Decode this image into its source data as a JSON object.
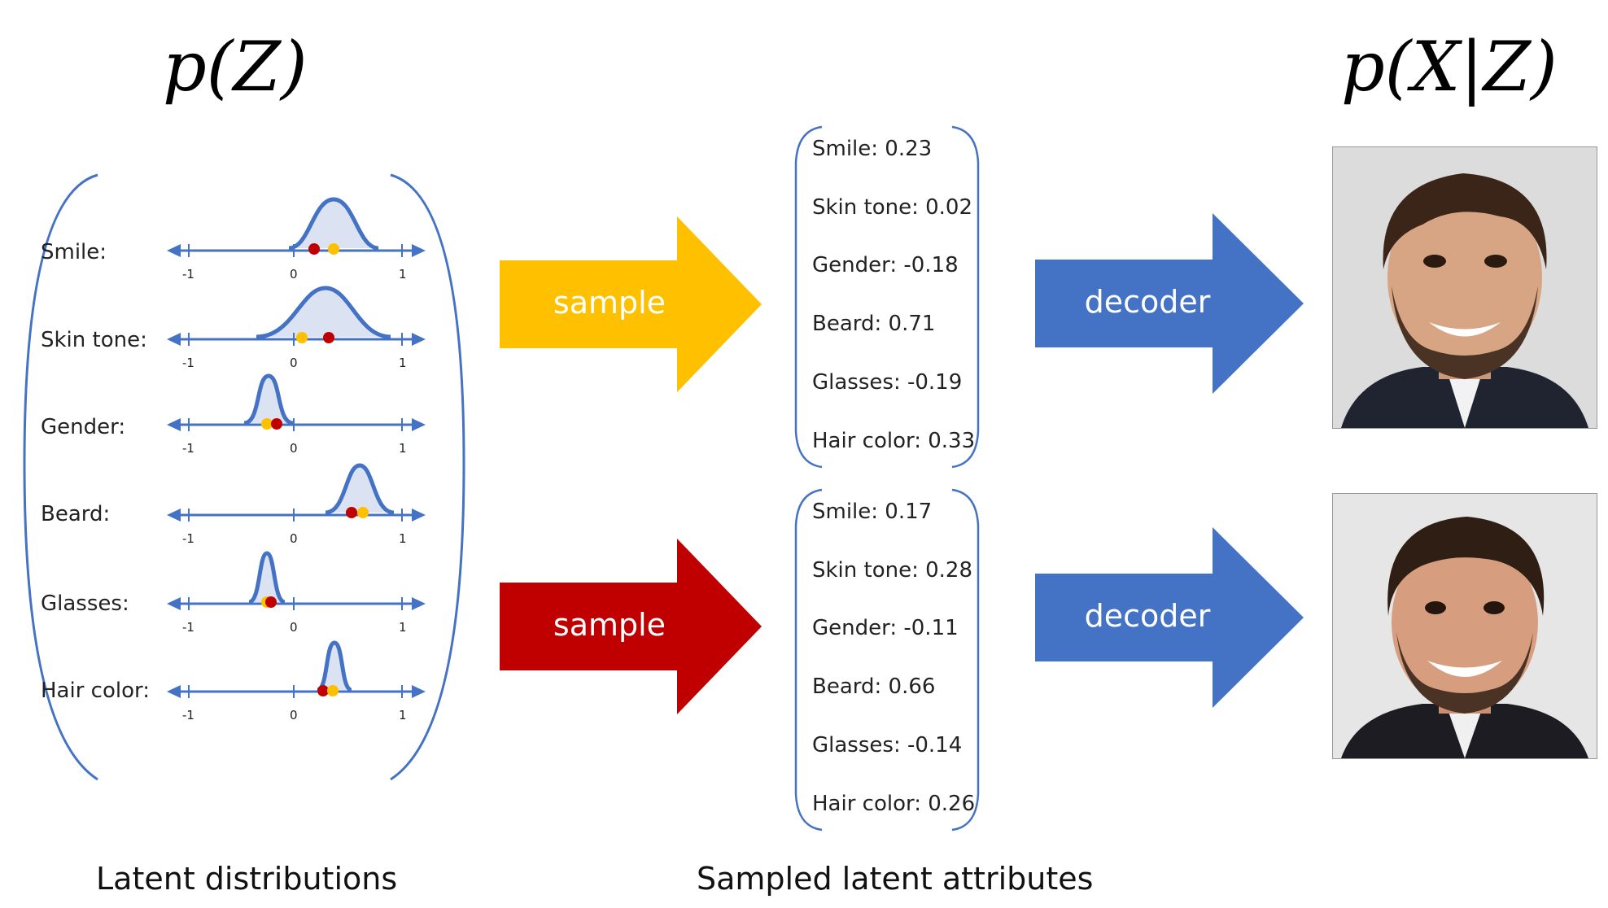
{
  "titles": {
    "prior": "p(Z)",
    "likelihood": "p(X|Z)"
  },
  "captions": {
    "left": "Latent distributions",
    "middle": "Sampled latent attributes"
  },
  "colors": {
    "curve": "#4472c4",
    "fill": "#dbe3f3",
    "yellow": "#ffc000",
    "red": "#c00000",
    "blue_arrow": "#4472c4"
  },
  "distributions": [
    {
      "label": "Smile:",
      "ticks": [
        "-1",
        "0",
        "1"
      ]
    },
    {
      "label": "Skin tone:",
      "ticks": [
        "-1",
        "0",
        "1"
      ]
    },
    {
      "label": "Gender:",
      "ticks": [
        "-1",
        "0",
        "1"
      ]
    },
    {
      "label": "Beard:",
      "ticks": [
        "-1",
        "0",
        "1"
      ]
    },
    {
      "label": "Glasses:",
      "ticks": [
        "-1",
        "0",
        "1"
      ]
    },
    {
      "label": "Hair color:",
      "ticks": [
        "-1",
        "0",
        "1"
      ]
    }
  ],
  "arrows": {
    "sample_top": "sample",
    "sample_bottom": "sample",
    "decoder_top": "decoder",
    "decoder_bottom": "decoder"
  },
  "samples_top": [
    "Smile:  0.23",
    "Skin tone: 0.02",
    "Gender: -0.18",
    "Beard: 0.71",
    "Glasses: -0.19",
    "Hair color: 0.33"
  ],
  "samples_bottom": [
    "Smile:  0.17",
    "Skin tone: 0.28",
    "Gender: -0.11",
    "Beard: 0.66",
    "Glasses: -0.14",
    "Hair color: 0.26"
  ],
  "images": {
    "top": "face-photo-1",
    "bottom": "face-photo-2"
  }
}
